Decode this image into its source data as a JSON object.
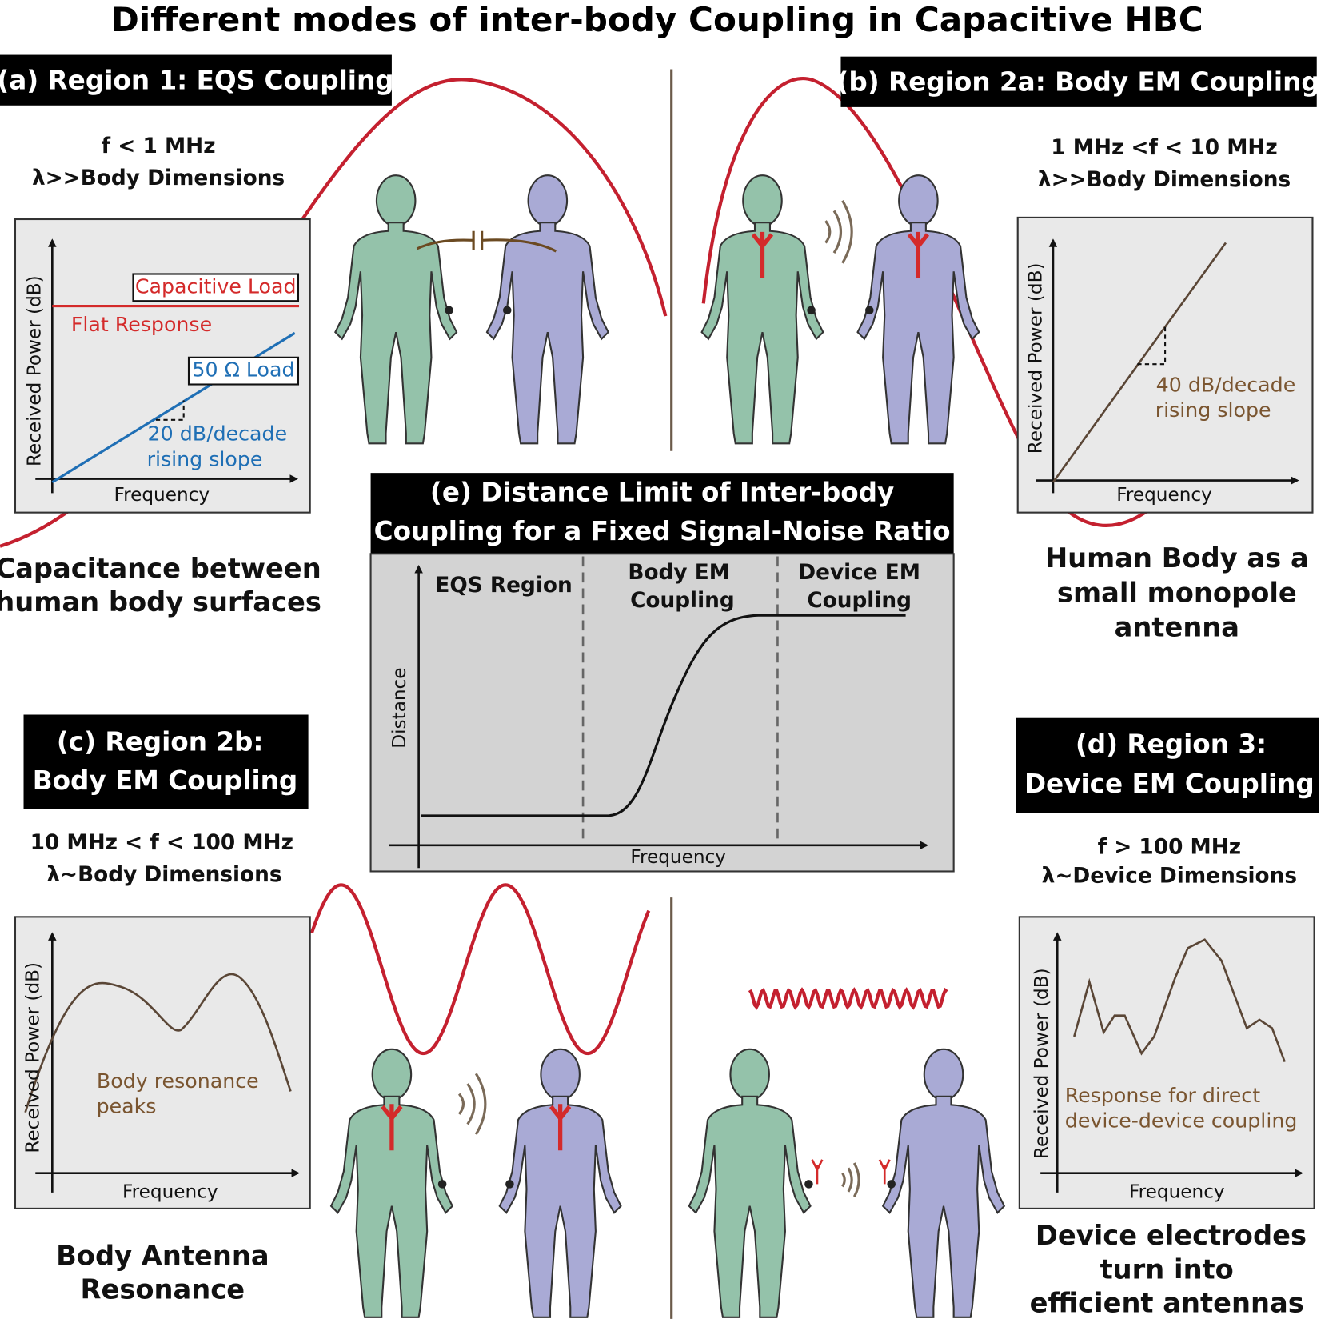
{
  "title": "Different modes of inter-body Coupling in Capacitive HBC",
  "panels": [
    {
      "heading": [
        "(a) Region 1: EQS Coupling"
      ],
      "conditions": [
        "f < 1 MHz",
        "λ>>Body Dimensions"
      ],
      "plot": {
        "y_label": "Received Power (dB)",
        "x_label": "Frequency",
        "annotations": [
          "Capacitive Load",
          "Flat Response",
          "50 Ω Load",
          "20 dB/decade",
          "rising slope"
        ]
      },
      "caption": [
        "Capacitance between",
        "human body surfaces"
      ]
    },
    {
      "heading": [
        "(b) Region 2a: Body EM Coupling"
      ],
      "conditions": [
        "1 MHz <f < 10 MHz",
        "λ>>Body Dimensions"
      ],
      "plot": {
        "y_label": "Received Power (dB)",
        "x_label": "Frequency",
        "annotations": [
          "40 dB/decade",
          "rising slope"
        ]
      },
      "caption": [
        "Human Body as a",
        "small monopole",
        "antenna"
      ]
    },
    {
      "heading": [
        "(c) Region 2b:",
        "Body EM Coupling"
      ],
      "conditions": [
        "10 MHz < f < 100 MHz",
        "λ~Body Dimensions"
      ],
      "plot": {
        "y_label": "Received Power (dB)",
        "x_label": "Frequency",
        "annotations": [
          "Body resonance",
          "peaks"
        ]
      },
      "caption": [
        "Body Antenna",
        "Resonance"
      ]
    },
    {
      "heading": [
        "(d) Region 3:",
        "Device EM Coupling"
      ],
      "conditions": [
        "f > 100 MHz",
        "λ~Device Dimensions"
      ],
      "plot": {
        "y_label": "Received Power (dB)",
        "x_label": "Frequency",
        "annotations": [
          "Response for direct",
          "device-device coupling"
        ]
      },
      "caption": [
        "Device electrodes",
        "turn into",
        "efficient antennas"
      ]
    }
  ],
  "summary": {
    "title": [
      "(e) Distance Limit of Inter-body",
      "Coupling for a Fixed Signal-Noise Ratio"
    ],
    "y_label": "Distance",
    "x_label": "Frequency",
    "regions": [
      [
        "EQS Region"
      ],
      [
        "Body EM",
        "Coupling"
      ],
      [
        "Device EM",
        "Coupling"
      ]
    ]
  }
}
